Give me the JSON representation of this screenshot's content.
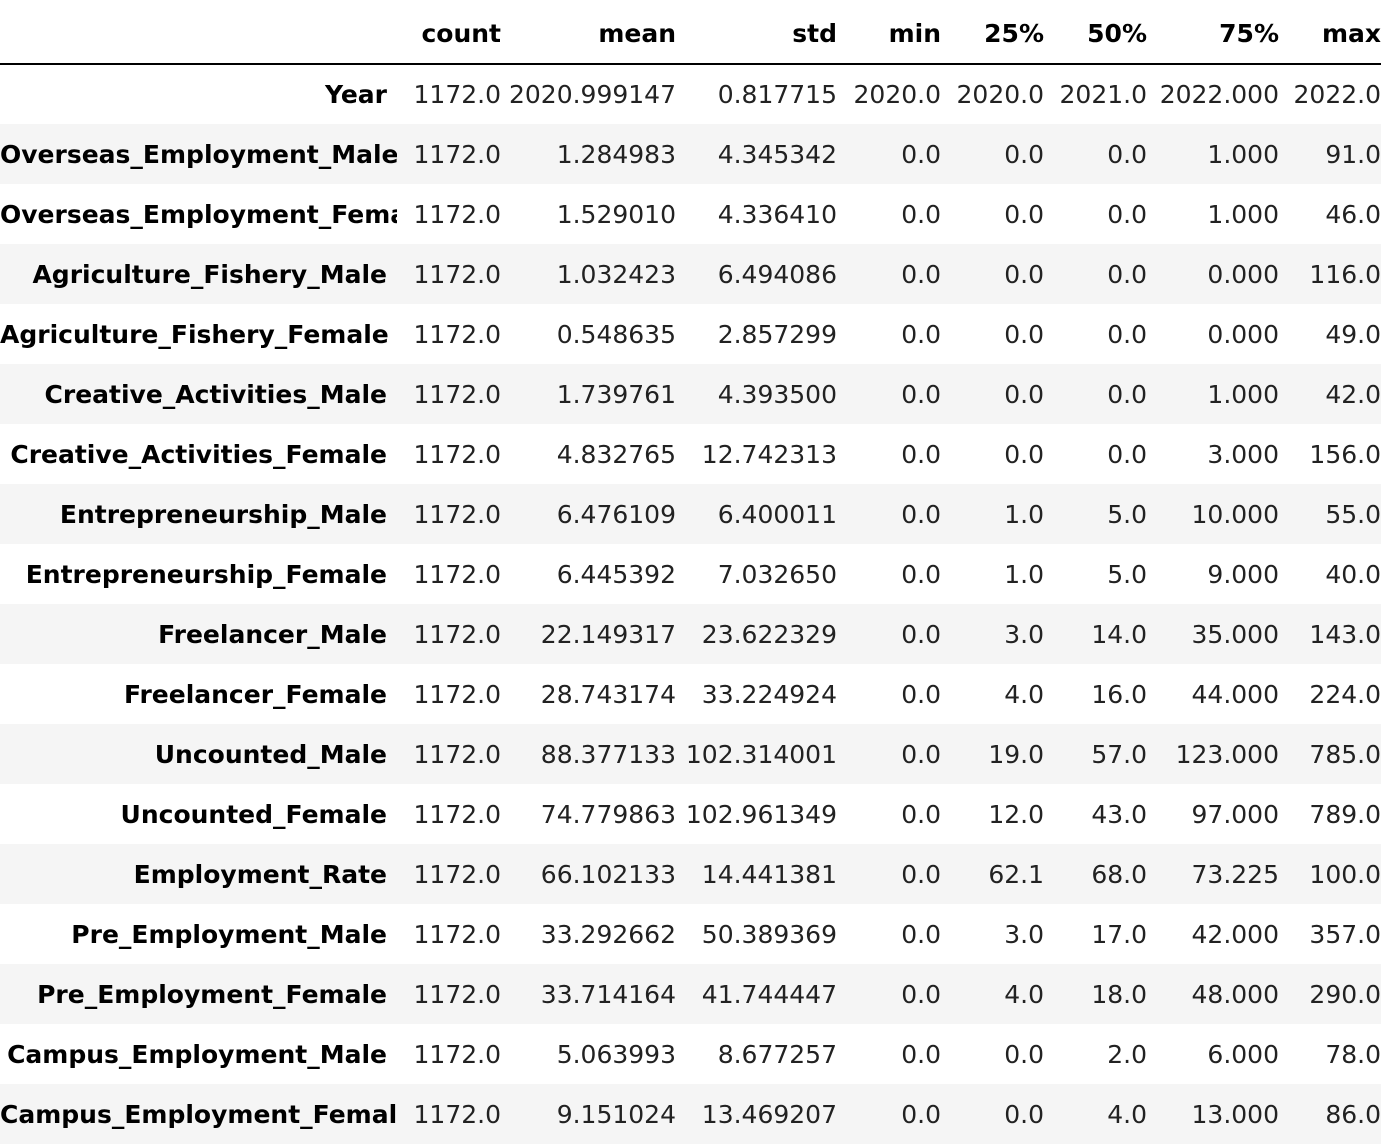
{
  "columns": [
    "count",
    "mean",
    "std",
    "min",
    "25%",
    "50%",
    "75%",
    "max"
  ],
  "rows": [
    {
      "label": "Year",
      "values": [
        "1172.0",
        "2020.999147",
        "0.817715",
        "2020.0",
        "2020.0",
        "2021.0",
        "2022.000",
        "2022.0"
      ]
    },
    {
      "label": "Overseas_Employment_Male",
      "values": [
        "1172.0",
        "1.284983",
        "4.345342",
        "0.0",
        "0.0",
        "0.0",
        "1.000",
        "91.0"
      ]
    },
    {
      "label": "Overseas_Employment_Female",
      "values": [
        "1172.0",
        "1.529010",
        "4.336410",
        "0.0",
        "0.0",
        "0.0",
        "1.000",
        "46.0"
      ]
    },
    {
      "label": "Agriculture_Fishery_Male",
      "values": [
        "1172.0",
        "1.032423",
        "6.494086",
        "0.0",
        "0.0",
        "0.0",
        "0.000",
        "116.0"
      ]
    },
    {
      "label": "Agriculture_Fishery_Female",
      "values": [
        "1172.0",
        "0.548635",
        "2.857299",
        "0.0",
        "0.0",
        "0.0",
        "0.000",
        "49.0"
      ]
    },
    {
      "label": "Creative_Activities_Male",
      "values": [
        "1172.0",
        "1.739761",
        "4.393500",
        "0.0",
        "0.0",
        "0.0",
        "1.000",
        "42.0"
      ]
    },
    {
      "label": "Creative_Activities_Female",
      "values": [
        "1172.0",
        "4.832765",
        "12.742313",
        "0.0",
        "0.0",
        "0.0",
        "3.000",
        "156.0"
      ]
    },
    {
      "label": "Entrepreneurship_Male",
      "values": [
        "1172.0",
        "6.476109",
        "6.400011",
        "0.0",
        "1.0",
        "5.0",
        "10.000",
        "55.0"
      ]
    },
    {
      "label": "Entrepreneurship_Female",
      "values": [
        "1172.0",
        "6.445392",
        "7.032650",
        "0.0",
        "1.0",
        "5.0",
        "9.000",
        "40.0"
      ]
    },
    {
      "label": "Freelancer_Male",
      "values": [
        "1172.0",
        "22.149317",
        "23.622329",
        "0.0",
        "3.0",
        "14.0",
        "35.000",
        "143.0"
      ]
    },
    {
      "label": "Freelancer_Female",
      "values": [
        "1172.0",
        "28.743174",
        "33.224924",
        "0.0",
        "4.0",
        "16.0",
        "44.000",
        "224.0"
      ]
    },
    {
      "label": "Uncounted_Male",
      "values": [
        "1172.0",
        "88.377133",
        "102.314001",
        "0.0",
        "19.0",
        "57.0",
        "123.000",
        "785.0"
      ]
    },
    {
      "label": "Uncounted_Female",
      "values": [
        "1172.0",
        "74.779863",
        "102.961349",
        "0.0",
        "12.0",
        "43.0",
        "97.000",
        "789.0"
      ]
    },
    {
      "label": "Employment_Rate",
      "values": [
        "1172.0",
        "66.102133",
        "14.441381",
        "0.0",
        "62.1",
        "68.0",
        "73.225",
        "100.0"
      ]
    },
    {
      "label": "Pre_Employment_Male",
      "values": [
        "1172.0",
        "33.292662",
        "50.389369",
        "0.0",
        "3.0",
        "17.0",
        "42.000",
        "357.0"
      ]
    },
    {
      "label": "Pre_Employment_Female",
      "values": [
        "1172.0",
        "33.714164",
        "41.744447",
        "0.0",
        "4.0",
        "18.0",
        "48.000",
        "290.0"
      ]
    },
    {
      "label": "Campus_Employment_Male",
      "values": [
        "1172.0",
        "5.063993",
        "8.677257",
        "0.0",
        "0.0",
        "2.0",
        "6.000",
        "78.0"
      ]
    },
    {
      "label": "Campus_Employment_Female",
      "values": [
        "1172.0",
        "9.151024",
        "13.469207",
        "0.0",
        "0.0",
        "4.0",
        "13.000",
        "86.0"
      ]
    }
  ]
}
